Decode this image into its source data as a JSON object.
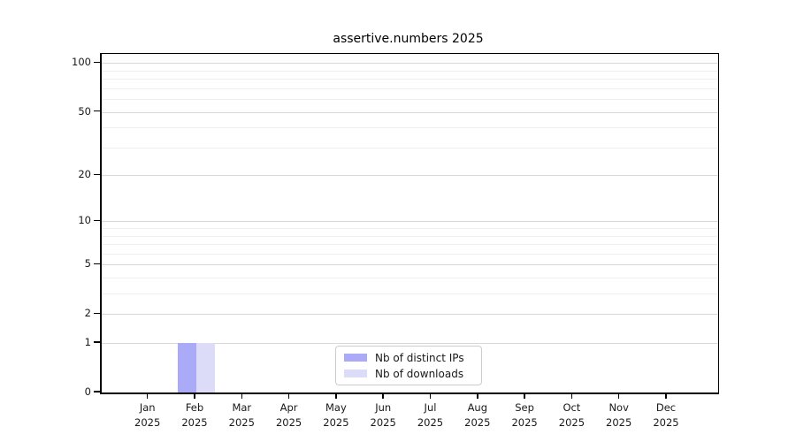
{
  "title": "assertive.numbers 2025",
  "chart_data": {
    "type": "bar",
    "title": "assertive.numbers 2025",
    "categories": [
      "Jan",
      "Feb",
      "Mar",
      "Apr",
      "May",
      "Jun",
      "Jul",
      "Aug",
      "Sep",
      "Oct",
      "Nov",
      "Dec"
    ],
    "year_label": "2025",
    "series": [
      {
        "name": "Nb of distinct IPs",
        "color": "#aaaaf8",
        "values": [
          0,
          1,
          0,
          0,
          0,
          0,
          0,
          0,
          0,
          0,
          0,
          0
        ]
      },
      {
        "name": "Nb of downloads",
        "color": "#dcdcf8",
        "values": [
          0,
          1,
          0,
          0,
          0,
          0,
          0,
          0,
          0,
          0,
          0,
          0
        ]
      }
    ],
    "yscale": "log1p",
    "ylabel": "",
    "xlabel": "",
    "ytick_values": [
      0,
      1,
      2,
      5,
      10,
      20,
      50,
      100
    ],
    "minor_ytick_values": [
      3,
      4,
      6,
      7,
      8,
      9,
      30,
      40,
      60,
      70,
      80,
      90
    ],
    "ylim": [
      0,
      114
    ],
    "grid": "horizontal",
    "legend_position": "inside-bottom-center",
    "colors": {
      "major_grid": "#d8d8d8",
      "minor_grid": "#efefef",
      "axis": "#000000",
      "text": "#191919"
    }
  }
}
